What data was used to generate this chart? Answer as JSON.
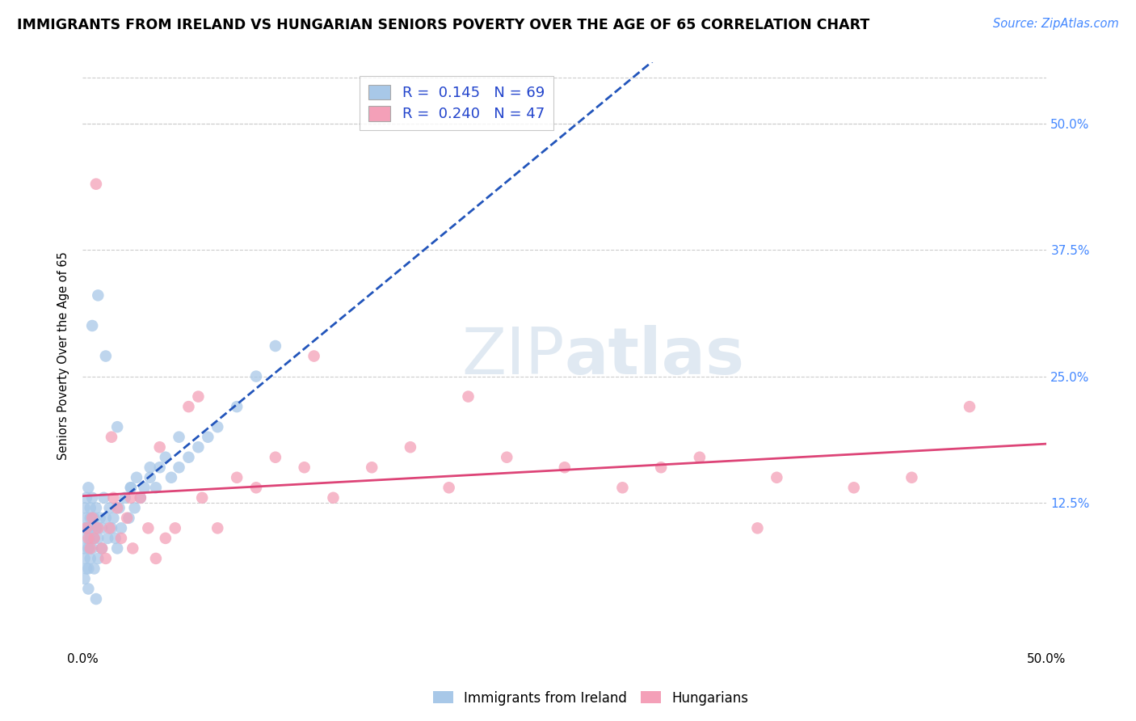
{
  "title": "IMMIGRANTS FROM IRELAND VS HUNGARIAN SENIORS POVERTY OVER THE AGE OF 65 CORRELATION CHART",
  "source": "Source: ZipAtlas.com",
  "ylabel": "Seniors Poverty Over the Age of 65",
  "xlim": [
    0.0,
    0.5
  ],
  "ylim": [
    -0.02,
    0.56
  ],
  "ytick_labels": [
    "12.5%",
    "25.0%",
    "37.5%",
    "50.0%"
  ],
  "ytick_values": [
    0.125,
    0.25,
    0.375,
    0.5
  ],
  "ireland_color": "#a8c8e8",
  "hungarian_color": "#f4a0b8",
  "ireland_line_color": "#2255bb",
  "hungarian_line_color": "#dd4477",
  "background_color": "#ffffff",
  "grid_color": "#cccccc",
  "title_fontsize": 12.5,
  "source_fontsize": 10.5,
  "axis_label_fontsize": 10.5,
  "legend_fontsize": 13,
  "tick_fontsize": 11,
  "ireland_x": [
    0.001,
    0.001,
    0.001,
    0.001,
    0.001,
    0.002,
    0.002,
    0.002,
    0.002,
    0.003,
    0.003,
    0.003,
    0.003,
    0.004,
    0.004,
    0.004,
    0.004,
    0.005,
    0.005,
    0.005,
    0.006,
    0.006,
    0.006,
    0.007,
    0.007,
    0.008,
    0.008,
    0.009,
    0.01,
    0.01,
    0.011,
    0.012,
    0.013,
    0.014,
    0.015,
    0.016,
    0.017,
    0.018,
    0.019,
    0.02,
    0.022,
    0.024,
    0.025,
    0.027,
    0.028,
    0.03,
    0.032,
    0.035,
    0.038,
    0.04,
    0.043,
    0.046,
    0.05,
    0.055,
    0.06,
    0.065,
    0.07,
    0.08,
    0.09,
    0.1,
    0.005,
    0.008,
    0.012,
    0.018,
    0.025,
    0.035,
    0.05,
    0.003,
    0.007
  ],
  "ireland_y": [
    0.08,
    0.1,
    0.05,
    0.12,
    0.07,
    0.09,
    0.13,
    0.06,
    0.11,
    0.1,
    0.08,
    0.14,
    0.06,
    0.12,
    0.09,
    0.07,
    0.11,
    0.1,
    0.08,
    0.13,
    0.11,
    0.09,
    0.06,
    0.12,
    0.1,
    0.09,
    0.07,
    0.11,
    0.1,
    0.08,
    0.13,
    0.11,
    0.09,
    0.12,
    0.1,
    0.11,
    0.09,
    0.08,
    0.12,
    0.1,
    0.13,
    0.11,
    0.14,
    0.12,
    0.15,
    0.13,
    0.14,
    0.15,
    0.14,
    0.16,
    0.17,
    0.15,
    0.16,
    0.17,
    0.18,
    0.19,
    0.2,
    0.22,
    0.25,
    0.28,
    0.3,
    0.33,
    0.27,
    0.2,
    0.14,
    0.16,
    0.19,
    0.04,
    0.03
  ],
  "hungarian_x": [
    0.002,
    0.003,
    0.004,
    0.005,
    0.006,
    0.008,
    0.01,
    0.012,
    0.014,
    0.016,
    0.018,
    0.02,
    0.023,
    0.026,
    0.03,
    0.034,
    0.038,
    0.043,
    0.048,
    0.055,
    0.062,
    0.07,
    0.08,
    0.09,
    0.1,
    0.115,
    0.13,
    0.15,
    0.17,
    0.19,
    0.22,
    0.25,
    0.28,
    0.32,
    0.36,
    0.4,
    0.43,
    0.46,
    0.007,
    0.015,
    0.025,
    0.04,
    0.06,
    0.12,
    0.2,
    0.3,
    0.35
  ],
  "hungarian_y": [
    0.1,
    0.09,
    0.08,
    0.11,
    0.09,
    0.1,
    0.08,
    0.07,
    0.1,
    0.13,
    0.12,
    0.09,
    0.11,
    0.08,
    0.13,
    0.1,
    0.07,
    0.09,
    0.1,
    0.22,
    0.13,
    0.1,
    0.15,
    0.14,
    0.17,
    0.16,
    0.13,
    0.16,
    0.18,
    0.14,
    0.17,
    0.16,
    0.14,
    0.17,
    0.15,
    0.14,
    0.15,
    0.22,
    0.44,
    0.19,
    0.13,
    0.18,
    0.23,
    0.27,
    0.23,
    0.16,
    0.1
  ]
}
